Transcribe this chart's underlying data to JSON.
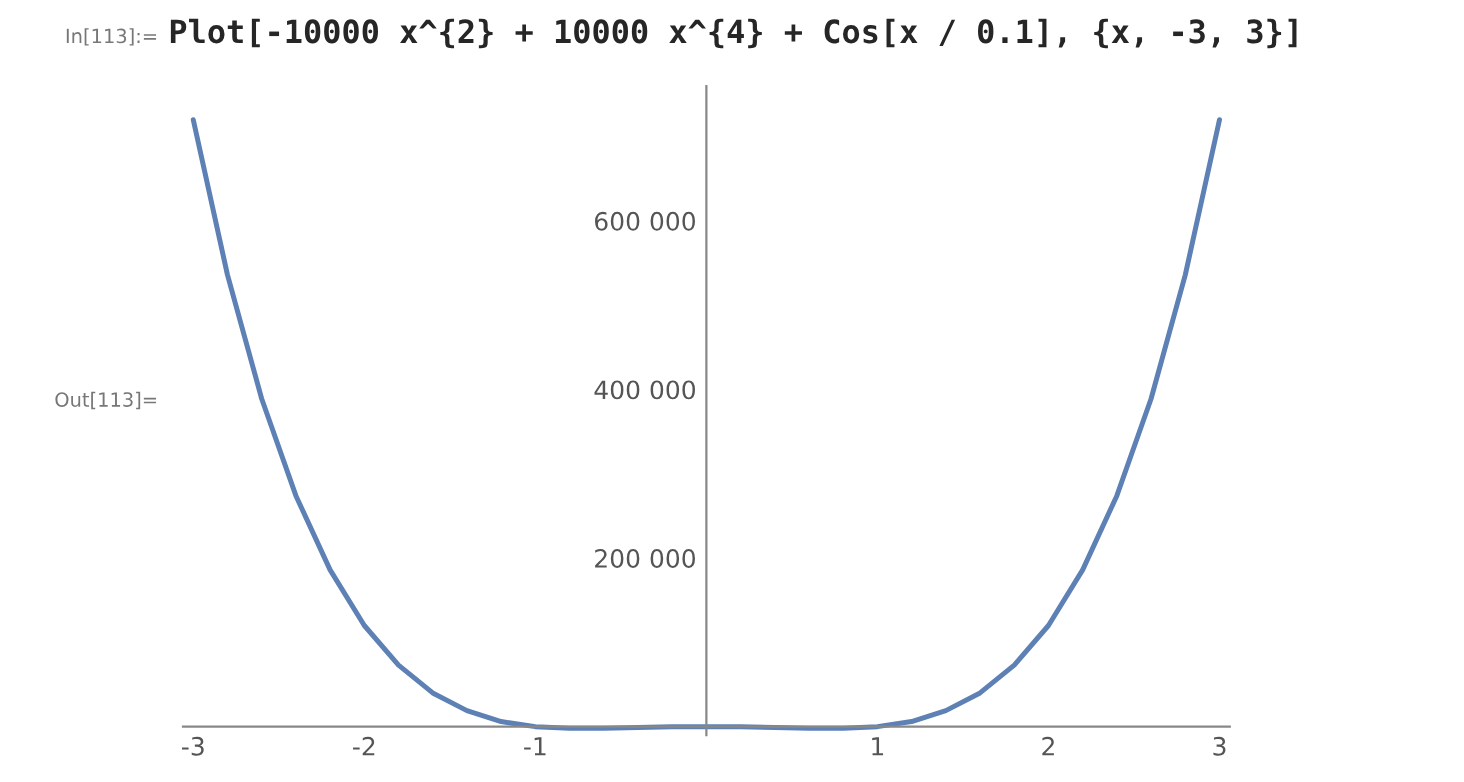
{
  "chart_data": {
    "type": "line",
    "title": "Plot[-10000 x^{2} + 10000 x^{4} + Cos[x / 0.1], {x, -3, 3}]",
    "annotations": [
      "In[113]:=",
      "Out[113]="
    ],
    "x": [
      -3,
      -2.8,
      -2.6,
      -2.4,
      -2.2,
      -2,
      -1.8,
      -1.6,
      -1.4,
      -1.2,
      -1,
      -0.8,
      -0.6,
      -0.4,
      -0.2,
      0,
      0.2,
      0.4,
      0.6,
      0.8,
      1,
      1.2,
      1.4,
      1.6,
      1.8,
      2,
      2.2,
      2.4,
      2.6,
      2.8,
      3
    ],
    "series": [
      {
        "color": "#5e81b5",
        "values": [
          720000,
          536000,
          389000,
          274000,
          186000,
          120000,
          73000,
          40000,
          19000,
          6000,
          0,
          -2000,
          -2000,
          -1000,
          0,
          0,
          0,
          -1000,
          -2000,
          -2000,
          0,
          6000,
          19000,
          40000,
          73000,
          120000,
          186000,
          274000,
          389000,
          536000,
          720000
        ]
      }
    ],
    "xlim": [
      -3.06,
      3.06
    ],
    "ylim": [
      -10000,
      760000
    ],
    "xticks": [
      -3,
      -2,
      -1,
      1,
      2,
      3
    ],
    "yticks": [
      {
        "value": 200000,
        "label": "200 000"
      },
      {
        "value": 400000,
        "label": "400 000"
      },
      {
        "value": 600000,
        "label": "600 000"
      }
    ],
    "grid": false,
    "legend": false
  }
}
